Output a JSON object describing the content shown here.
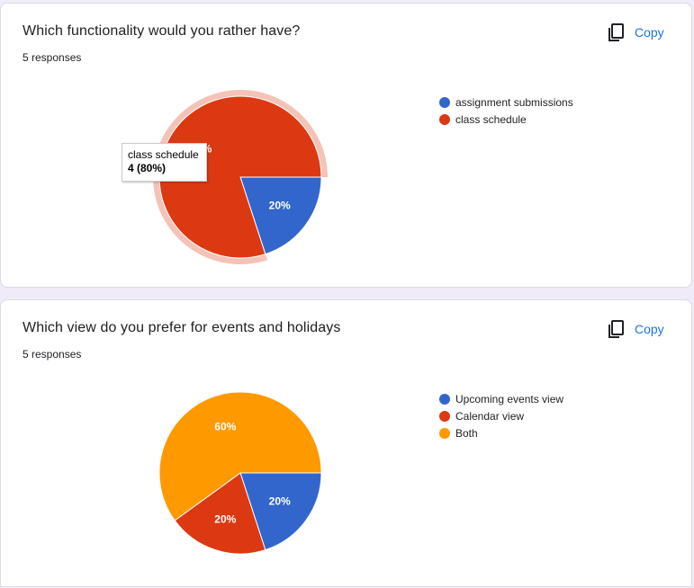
{
  "copy_label": "Copy",
  "copy_icon": "copy-icon",
  "colors": {
    "blue": "#3366cc",
    "red": "#dc3912",
    "orange": "#ff9900",
    "link": "#1a73e8"
  },
  "chart_data": [
    {
      "type": "pie",
      "title": "Which functionality would you rather have?",
      "subtitle": "5 responses",
      "categories": [
        "assignment submissions",
        "class schedule"
      ],
      "values": [
        1,
        4
      ],
      "percent_labels": [
        "20%",
        "80%"
      ],
      "colors": [
        "#3366cc",
        "#dc3912"
      ],
      "legend_position": "right",
      "highlighted_slice": 1,
      "tooltip": {
        "label": "class schedule",
        "value": "4 (80%)"
      }
    },
    {
      "type": "pie",
      "title": "Which view do you prefer for events and holidays",
      "subtitle": "5 responses",
      "categories": [
        "Upcoming events view",
        "Calendar view",
        "Both"
      ],
      "values": [
        1,
        1,
        3
      ],
      "percent_labels": [
        "20%",
        "20%",
        "60%"
      ],
      "colors": [
        "#3366cc",
        "#dc3912",
        "#ff9900"
      ],
      "legend_position": "right"
    }
  ]
}
